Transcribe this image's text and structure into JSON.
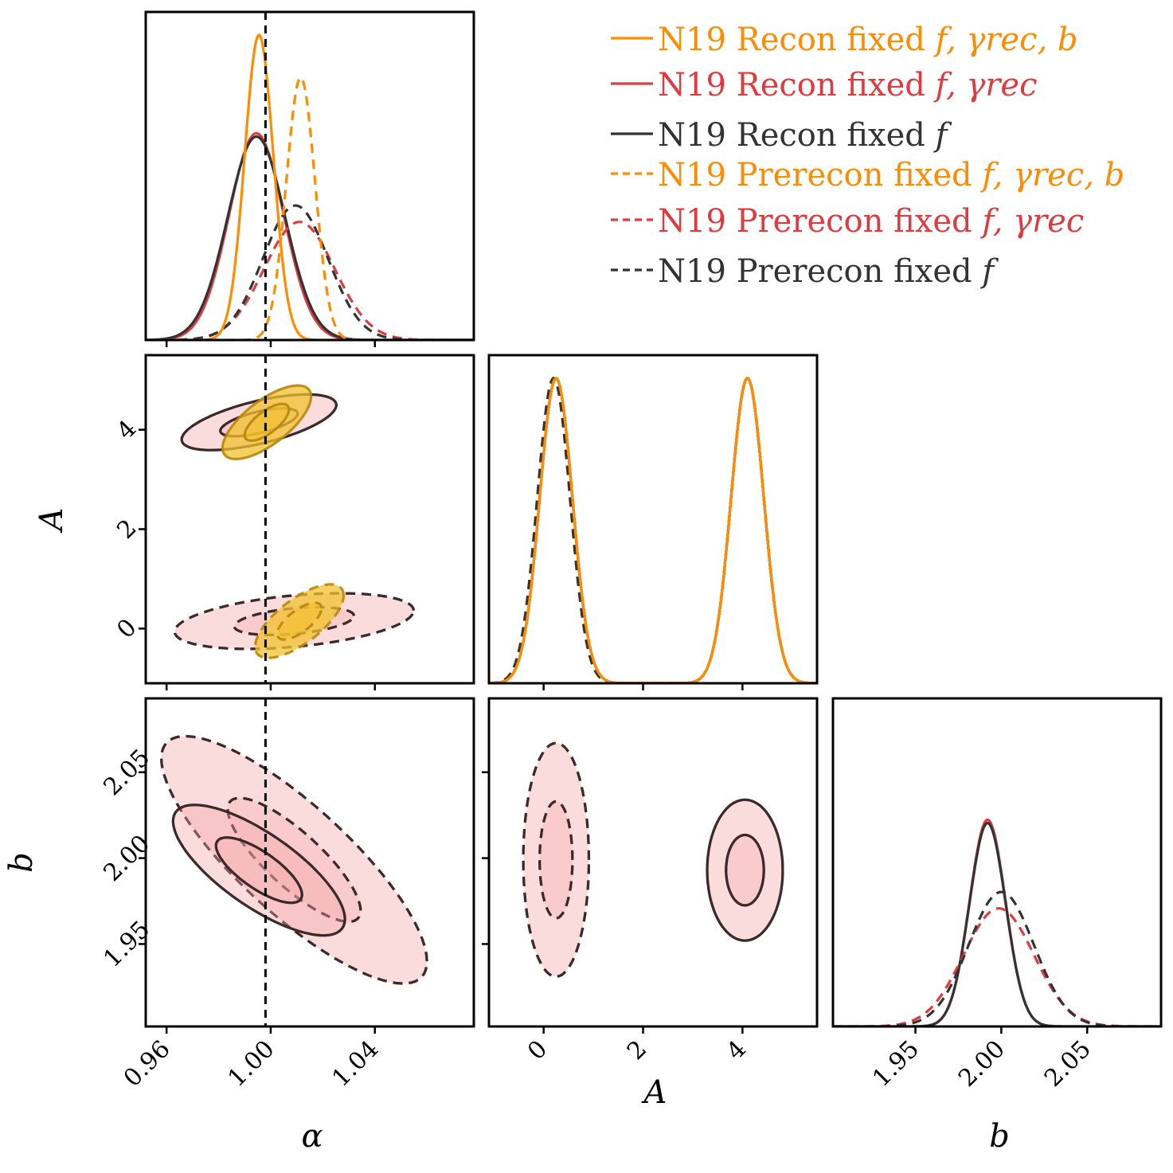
{
  "chart_data": {
    "type": "corner",
    "parameters": [
      {
        "key": "alpha",
        "label": "α",
        "range": [
          0.952,
          1.078
        ],
        "ticks": [
          "0.96",
          "1.00",
          "1.04"
        ]
      },
      {
        "key": "A",
        "label": "A",
        "range": [
          -1.1,
          5.5
        ],
        "ticks": [
          "0",
          "2",
          "4"
        ]
      },
      {
        "key": "b",
        "label": "b",
        "range": [
          1.902,
          2.093
        ],
        "ticks": [
          "1.95",
          "2.00",
          "2.05"
        ]
      }
    ],
    "truth": {
      "alpha": 0.998
    },
    "colors": {
      "orange": "#ff8c00",
      "red": "#e03a3e",
      "black": "#333333",
      "gold": "#f2c12e"
    },
    "series": [
      {
        "name": "N19 Recon fixed f, γrec, b",
        "color": "orange",
        "style": "solid",
        "mean": {
          "alpha": 0.9955,
          "A": 4.1
        },
        "sigma": {
          "alpha": 0.0055,
          "A": 0.33
        },
        "contour_means": {
          "alpha": 0.998,
          "A": 4.1
        },
        "contour_sigmas": {
          "alpha": 0.011,
          "A": 0.48
        },
        "rho": {
          "alpha_A": 0.6
        },
        "peak": 0.93
      },
      {
        "name": "N19 Recon fixed f, γrec",
        "color": "red",
        "style": "solid",
        "mean": {
          "alpha": 0.9945,
          "A": 4.1,
          "b": 1.992
        },
        "sigma": {
          "alpha": 0.0105,
          "A": 0.33,
          "b": 0.0105
        },
        "contour_means": {
          "alpha": 0.9955,
          "A": 4.15,
          "b": 1.993
        },
        "contour_sigmas": {
          "alpha": 0.0165,
          "A": 0.45,
          "b": 0.019
        },
        "rho": {
          "alpha_A": 0.65,
          "alpha_b": -0.75,
          "A_b": 0.1
        },
        "peak": 0.63
      },
      {
        "name": "N19 Recon fixed f",
        "color": "black",
        "style": "solid",
        "mean": {
          "alpha": 0.9945,
          "A": 4.1,
          "b": 1.992
        },
        "sigma": {
          "alpha": 0.011,
          "A": 0.33,
          "b": 0.0105
        },
        "contour_means": {
          "alpha": 0.9955,
          "A": 4.15,
          "b": 1.993
        },
        "contour_sigmas": {
          "alpha": 0.0165,
          "A": 0.45,
          "b": 0.019
        },
        "rho": {
          "alpha_A": 0.65,
          "alpha_b": -0.75,
          "A_b": 0.1
        },
        "peak": 0.62
      },
      {
        "name": "N19 Prerecon fixed f, γrec, b",
        "color": "orange",
        "style": "dashed",
        "mean": {
          "alpha": 1.0115,
          "A": 0.25
        },
        "sigma": {
          "alpha": 0.0055,
          "A": 0.33
        },
        "contour_means": {
          "alpha": 1.011,
          "A": 0.1
        },
        "contour_sigmas": {
          "alpha": 0.011,
          "A": 0.48
        },
        "rho": {
          "alpha_A": 0.6
        },
        "peak": 0.8
      },
      {
        "name": "N19 Prerecon fixed f, γrec",
        "color": "red",
        "style": "dashed",
        "mean": {
          "alpha": 1.011,
          "A": 0.25,
          "b": 1.9985
        },
        "sigma": {
          "alpha": 0.0135,
          "A": 0.33,
          "b": 0.0205
        },
        "contour_means": {
          "alpha": 1.009,
          "A": 0.15,
          "b": 1.999
        },
        "contour_sigmas": {
          "alpha": 0.0255,
          "A": 0.5,
          "b": 0.036
        },
        "rho": {
          "alpha_A": 0.3,
          "alpha_b": -0.82,
          "A_b": 0.0
        },
        "peak": 0.36
      },
      {
        "name": "N19 Prerecon fixed f",
        "color": "black",
        "style": "dashed",
        "mean": {
          "alpha": 1.0095,
          "A": 0.2,
          "b": 2.0
        },
        "sigma": {
          "alpha": 0.0125,
          "A": 0.33,
          "b": 0.019
        },
        "contour_means": {
          "alpha": 1.009,
          "A": 0.15,
          "b": 1.999
        },
        "contour_sigmas": {
          "alpha": 0.0255,
          "A": 0.5,
          "b": 0.036
        },
        "rho": {
          "alpha_A": 0.3,
          "alpha_b": -0.82,
          "A_b": 0.0
        },
        "peak": 0.41
      }
    ],
    "legend": {
      "placement": "top-right",
      "entries": [
        {
          "text": "N19 Recon fixed ",
          "math": "f, γrec, b",
          "color": "orange",
          "style": "solid"
        },
        {
          "text": "N19 Recon fixed ",
          "math": "f, γrec",
          "color": "red",
          "style": "solid"
        },
        {
          "text": "N19 Recon fixed ",
          "math": "f",
          "color": "black",
          "style": "solid"
        },
        {
          "text": "N19 Prerecon fixed ",
          "math": "f, γrec, b",
          "color": "orange",
          "style": "dashed"
        },
        {
          "text": "N19 Prerecon fixed ",
          "math": "f, γrec",
          "color": "red",
          "style": "dashed"
        },
        {
          "text": "N19 Prerecon fixed ",
          "math": "f",
          "color": "black",
          "style": "dashed"
        }
      ]
    },
    "contour_levels": [
      "1σ",
      "2σ"
    ],
    "grid": false
  }
}
